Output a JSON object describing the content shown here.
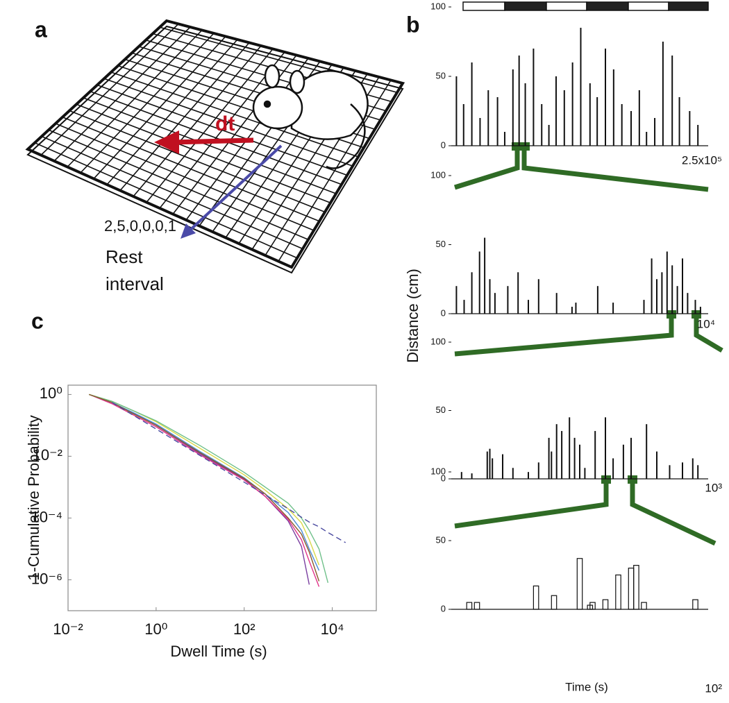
{
  "panels": {
    "a": {
      "label": "a",
      "dt": "dt",
      "code": "2,5,0,0,0,1",
      "rest": "Rest",
      "interval": "interval"
    },
    "b": {
      "label": "b",
      "ylabel": "Distance (cm)",
      "xlabel": "Time (s)"
    },
    "c": {
      "label": "c"
    }
  },
  "chart_data": [
    {
      "type": "line",
      "xlabel": "Dwell Time (s)",
      "ylabel": "1-Cumulative Probability",
      "xscale": "log",
      "yscale": "log",
      "xlim": [
        0.01,
        100000
      ],
      "ylim": [
        1e-07,
        2
      ],
      "xticks": [
        {
          "value": 0.01,
          "label": "10⁻²"
        },
        {
          "value": 1,
          "label": "10⁰"
        },
        {
          "value": 100,
          "label": "10²"
        },
        {
          "value": 10000,
          "label": "10⁴"
        }
      ],
      "yticks": [
        {
          "value": 1,
          "label": "10⁰"
        },
        {
          "value": 0.01,
          "label": "10⁻²"
        },
        {
          "value": 0.0001,
          "label": "10⁻⁴"
        },
        {
          "value": 1e-06,
          "label": "10⁻⁶"
        }
      ],
      "x": [
        0.03,
        0.1,
        0.3,
        1,
        10,
        100,
        300,
        1000,
        2000,
        3000,
        5000,
        8000,
        20000
      ],
      "series": [
        {
          "color": "#7a3fa0",
          "values": [
            1,
            0.55,
            0.25,
            0.1,
            0.012,
            0.0018,
            0.0005,
            8e-05,
            1.2e-05,
            7e-07,
            null,
            null,
            null
          ]
        },
        {
          "color": "#e0338a",
          "values": [
            1,
            0.5,
            0.22,
            0.09,
            0.011,
            0.0017,
            0.0005,
            9e-05,
            2e-05,
            4e-06,
            6e-07,
            null,
            null
          ]
        },
        {
          "color": "#4a8bd6",
          "values": [
            1,
            0.55,
            0.26,
            0.11,
            0.014,
            0.002,
            0.0006,
            0.00015,
            4e-05,
            1e-05,
            2e-06,
            null,
            null
          ]
        },
        {
          "color": "#d9d94a",
          "values": [
            1,
            0.6,
            0.3,
            0.13,
            0.018,
            0.0025,
            0.0008,
            0.0002,
            7e-05,
            2e-05,
            3e-06,
            null,
            null
          ]
        },
        {
          "color": "#6fc08a",
          "values": [
            1,
            0.6,
            0.3,
            0.14,
            0.022,
            0.003,
            0.001,
            0.0003,
            0.0001,
            4e-05,
            1e-05,
            8e-07,
            null
          ]
        },
        {
          "color": "#8a5a2a",
          "values": [
            1,
            0.55,
            0.24,
            0.1,
            0.013,
            0.0019,
            0.0006,
            0.0001,
            3e-05,
            8e-06,
            9e-07,
            null,
            null
          ]
        },
        {
          "color": "#4a4aa0",
          "dashed": true,
          "values": [
            null,
            0.55,
            0.214,
            0.076,
            0.0105,
            0.00145,
            0.00056,
            0.0002,
            0.000106,
            7.4e-05,
            5.2e-05,
            3.4e-05,
            1.6e-05
          ]
        }
      ]
    },
    {
      "type": "bar",
      "scale_label": "2.5x10⁵",
      "color": "#111111",
      "xlim": [
        0,
        250000
      ],
      "ylim": [
        0,
        100
      ],
      "yticks": [
        0,
        50,
        100
      ],
      "x": [
        5000,
        12000,
        20000,
        28000,
        36000,
        45000,
        52000,
        60000,
        66000,
        72000,
        80000,
        88000,
        95000,
        102000,
        110000,
        118000,
        126000,
        135000,
        142000,
        150000,
        158000,
        166000,
        175000,
        183000,
        190000,
        198000,
        206000,
        215000,
        222000,
        232000,
        240000
      ],
      "values": [
        50,
        30,
        60,
        20,
        40,
        35,
        10,
        55,
        65,
        45,
        70,
        30,
        15,
        50,
        40,
        60,
        85,
        45,
        35,
        70,
        55,
        30,
        25,
        40,
        10,
        20,
        75,
        65,
        35,
        25,
        15
      ]
    },
    {
      "type": "bar",
      "scale_label": "10⁴",
      "color": "#111111",
      "xlim": [
        0,
        10000
      ],
      "ylim": [
        0,
        100
      ],
      "yticks": [
        0,
        50,
        100
      ],
      "x": [
        200,
        500,
        800,
        1100,
        1300,
        1500,
        1700,
        2200,
        2600,
        3000,
        3400,
        4100,
        4700,
        4850,
        5700,
        6300,
        7500,
        7800,
        8000,
        8200,
        8400,
        8600,
        8800,
        9000,
        9200,
        9500,
        9700
      ],
      "values": [
        20,
        10,
        30,
        45,
        55,
        25,
        15,
        20,
        30,
        10,
        25,
        15,
        5,
        8,
        20,
        8,
        10,
        40,
        25,
        30,
        45,
        35,
        20,
        40,
        15,
        10,
        5
      ]
    },
    {
      "type": "bar",
      "scale_label": "10³",
      "color": "#111111",
      "xlim": [
        0,
        1000
      ],
      "ylim": [
        0,
        100
      ],
      "yticks": [
        0,
        50,
        100
      ],
      "x": [
        40,
        80,
        140,
        150,
        160,
        200,
        240,
        300,
        340,
        380,
        390,
        410,
        430,
        460,
        480,
        500,
        520,
        560,
        600,
        630,
        670,
        700,
        760,
        800,
        850,
        900,
        940,
        960
      ],
      "values": [
        5,
        4,
        20,
        22,
        15,
        18,
        8,
        5,
        12,
        30,
        20,
        40,
        35,
        45,
        30,
        25,
        8,
        35,
        45,
        15,
        25,
        30,
        40,
        20,
        10,
        12,
        15,
        10
      ]
    },
    {
      "type": "bar",
      "outline": true,
      "scale_label": "10²",
      "color": "#111111",
      "xlim": [
        0,
        100
      ],
      "ylim": [
        0,
        100
      ],
      "yticks": [
        0,
        50,
        100
      ],
      "x": [
        7,
        10,
        33,
        40,
        50,
        54,
        55,
        60,
        65,
        70,
        72,
        75,
        95
      ],
      "values": [
        5,
        5,
        17,
        10,
        37,
        3,
        5,
        7,
        25,
        30,
        32,
        5,
        7
      ]
    }
  ]
}
